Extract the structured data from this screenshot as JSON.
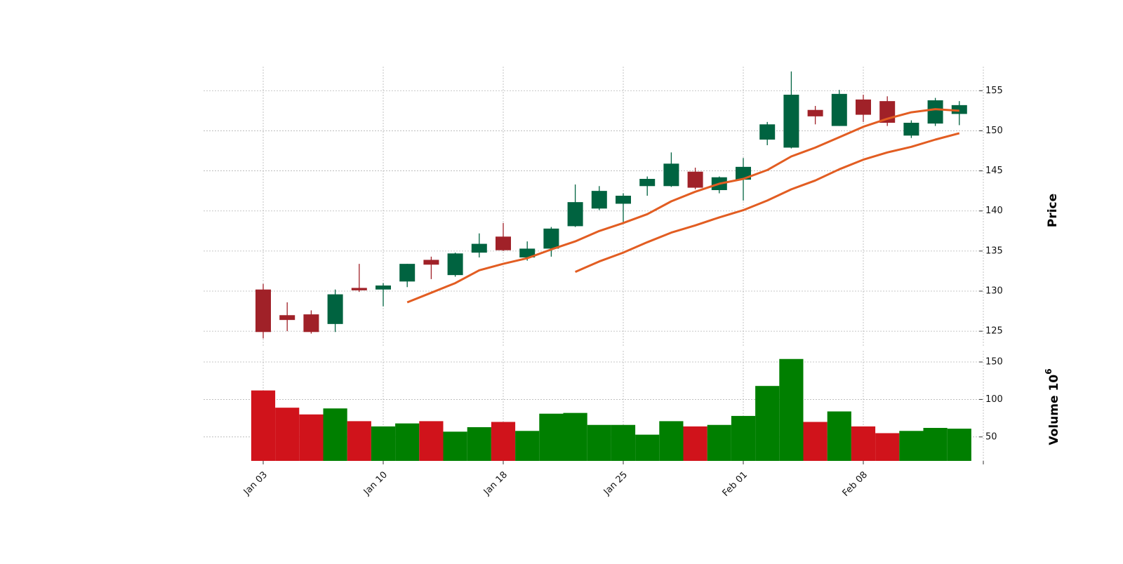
{
  "chart_data": {
    "type": "candlestick",
    "ylabel": "Price",
    "volume_label": "Volume",
    "volume_exponent_base": "10",
    "volume_exponent": "6",
    "price_ylim": [
      123,
      158
    ],
    "price_ticks": [
      "125",
      "130",
      "135",
      "140",
      "145",
      "150",
      "155"
    ],
    "volume_ylim": [
      18,
      165
    ],
    "volume_ticks": [
      "50",
      "100",
      "150"
    ],
    "x_tick_labels": [
      {
        "index": 0,
        "label": "Jan 03"
      },
      {
        "index": 5,
        "label": "Jan 10"
      },
      {
        "index": 10,
        "label": "Jan 18"
      },
      {
        "index": 15,
        "label": "Jan 25"
      },
      {
        "index": 20,
        "label": "Feb 01"
      },
      {
        "index": 25,
        "label": "Feb 08"
      }
    ],
    "colors": {
      "up_body": "#006340",
      "down_body": "#A02128",
      "volume_up": "#007f00",
      "volume_down": "#d0131b",
      "moving_average": "#e25d22"
    },
    "candles": [
      {
        "open": 130.2,
        "high": 130.9,
        "low": 124.1,
        "close": 124.9
      },
      {
        "open": 127.0,
        "high": 128.6,
        "low": 125.0,
        "close": 126.4
      },
      {
        "open": 127.1,
        "high": 127.6,
        "low": 124.7,
        "close": 124.9
      },
      {
        "open": 125.9,
        "high": 130.2,
        "low": 124.9,
        "close": 129.6
      },
      {
        "open": 130.4,
        "high": 133.4,
        "low": 129.9,
        "close": 130.1
      },
      {
        "open": 130.2,
        "high": 131.0,
        "low": 128.1,
        "close": 130.7
      },
      {
        "open": 131.2,
        "high": 133.4,
        "low": 130.5,
        "close": 133.4
      },
      {
        "open": 133.9,
        "high": 134.3,
        "low": 131.5,
        "close": 133.3
      },
      {
        "open": 132.0,
        "high": 134.8,
        "low": 131.8,
        "close": 134.7
      },
      {
        "open": 134.8,
        "high": 137.2,
        "low": 134.2,
        "close": 135.9
      },
      {
        "open": 136.8,
        "high": 138.5,
        "low": 135.0,
        "close": 135.1
      },
      {
        "open": 134.2,
        "high": 136.2,
        "low": 133.8,
        "close": 135.3
      },
      {
        "open": 135.3,
        "high": 138.0,
        "low": 134.3,
        "close": 137.8
      },
      {
        "open": 138.1,
        "high": 143.3,
        "low": 138.0,
        "close": 141.1
      },
      {
        "open": 140.3,
        "high": 143.1,
        "low": 140.1,
        "close": 142.5
      },
      {
        "open": 140.9,
        "high": 142.2,
        "low": 138.4,
        "close": 141.9
      },
      {
        "open": 143.1,
        "high": 144.3,
        "low": 141.9,
        "close": 144.0
      },
      {
        "open": 143.1,
        "high": 147.3,
        "low": 143.0,
        "close": 145.9
      },
      {
        "open": 144.9,
        "high": 145.4,
        "low": 142.7,
        "close": 142.9
      },
      {
        "open": 142.6,
        "high": 144.3,
        "low": 142.2,
        "close": 144.2
      },
      {
        "open": 143.9,
        "high": 146.6,
        "low": 141.3,
        "close": 145.5
      },
      {
        "open": 148.9,
        "high": 151.1,
        "low": 148.2,
        "close": 150.8
      },
      {
        "open": 147.9,
        "high": 157.4,
        "low": 147.8,
        "close": 154.5
      },
      {
        "open": 152.6,
        "high": 153.1,
        "low": 150.8,
        "close": 151.8
      },
      {
        "open": 150.6,
        "high": 155.1,
        "low": 150.6,
        "close": 154.6
      },
      {
        "open": 153.9,
        "high": 154.5,
        "low": 151.1,
        "close": 152.0
      },
      {
        "open": 153.7,
        "high": 154.3,
        "low": 150.6,
        "close": 151.0
      },
      {
        "open": 149.4,
        "high": 151.3,
        "low": 149.1,
        "close": 151.0
      },
      {
        "open": 150.9,
        "high": 154.1,
        "low": 150.6,
        "close": 153.8
      },
      {
        "open": 152.1,
        "high": 153.7,
        "low": 150.7,
        "close": 153.2
      }
    ],
    "volume": [
      112,
      89,
      80,
      88,
      71,
      64,
      68,
      71,
      57,
      63,
      70,
      58,
      81,
      82,
      66,
      66,
      53,
      71,
      64,
      66,
      78,
      118,
      154,
      70,
      84,
      64,
      55,
      58,
      62,
      61
    ],
    "moving_averages": [
      {
        "start_index": 6,
        "values": [
          128.6,
          129.8,
          131.0,
          132.6,
          133.4,
          134.1,
          135.2,
          136.2,
          137.5,
          138.5,
          139.6,
          141.2,
          142.4,
          143.4,
          144.0,
          145.1,
          146.8,
          147.9,
          149.2,
          150.5,
          151.5,
          152.3,
          152.7,
          152.5
        ]
      },
      {
        "start_index": 13,
        "values": [
          132.4,
          133.7,
          134.8,
          136.1,
          137.3,
          138.2,
          139.2,
          140.1,
          141.3,
          142.7,
          143.8,
          145.2,
          146.4,
          147.3,
          148.0,
          148.9,
          149.7
        ]
      }
    ]
  }
}
